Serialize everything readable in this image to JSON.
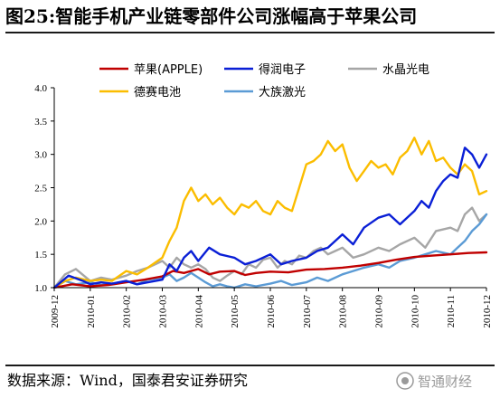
{
  "figure": {
    "title": "图25:智能手机产业链零部件公司涨幅高于苹果公司",
    "source": "数据来源：Wind，国泰君安证券研究",
    "watermark": "智通财经"
  },
  "chart_data": {
    "type": "line",
    "title": "",
    "xlabel": "",
    "ylabel": "",
    "ylim": [
      1.0,
      4.0
    ],
    "yticks": [
      "1.0",
      "1.5",
      "2.0",
      "2.5",
      "3.0",
      "3.5",
      "4.0"
    ],
    "xticks": [
      "2009-12",
      "2010-01",
      "2010-02",
      "2010-03",
      "2010-04",
      "2010-05",
      "2010-06",
      "2010-07",
      "2010-08",
      "2010-09",
      "2010-10",
      "2010-11",
      "2010-12"
    ],
    "xlim": [
      0,
      12
    ],
    "grid": false,
    "legend_position": "top",
    "series": [
      {
        "name": "苹果(APPLE)",
        "color": "#c00000",
        "x": [
          0,
          0.5,
          1,
          1.5,
          2,
          2.5,
          3,
          3.3,
          3.6,
          4,
          4.3,
          4.6,
          5,
          5.3,
          5.6,
          6,
          6.5,
          7,
          7.5,
          8,
          8.5,
          9,
          9.5,
          10,
          10.5,
          11,
          11.5,
          12
        ],
        "y": [
          1.0,
          1.05,
          1.02,
          1.04,
          1.08,
          1.12,
          1.17,
          1.25,
          1.22,
          1.28,
          1.2,
          1.24,
          1.25,
          1.19,
          1.22,
          1.24,
          1.23,
          1.27,
          1.28,
          1.3,
          1.33,
          1.37,
          1.42,
          1.46,
          1.48,
          1.5,
          1.52,
          1.53
        ]
      },
      {
        "name": "得润电子",
        "color": "#0a1fd6",
        "x": [
          0,
          0.4,
          0.8,
          1,
          1.3,
          1.6,
          2,
          2.3,
          2.6,
          3,
          3.2,
          3.4,
          3.6,
          3.8,
          4,
          4.3,
          4.6,
          5,
          5.3,
          5.6,
          6,
          6.3,
          6.6,
          7,
          7.3,
          7.6,
          8,
          8.3,
          8.6,
          9,
          9.3,
          9.6,
          10,
          10.2,
          10.4,
          10.6,
          10.8,
          11,
          11.2,
          11.4,
          11.6,
          11.8,
          12
        ],
        "y": [
          1.0,
          1.18,
          1.1,
          1.05,
          1.08,
          1.06,
          1.1,
          1.05,
          1.08,
          1.12,
          1.35,
          1.25,
          1.45,
          1.55,
          1.4,
          1.6,
          1.5,
          1.45,
          1.35,
          1.4,
          1.5,
          1.35,
          1.4,
          1.45,
          1.55,
          1.6,
          1.8,
          1.65,
          1.9,
          2.05,
          2.1,
          1.95,
          2.15,
          2.3,
          2.2,
          2.45,
          2.6,
          2.7,
          2.65,
          3.1,
          3.0,
          2.8,
          3.0
        ]
      },
      {
        "name": "水晶光电",
        "color": "#a6a6a6",
        "x": [
          0,
          0.3,
          0.6,
          1,
          1.3,
          1.6,
          2,
          2.3,
          2.6,
          3,
          3.2,
          3.4,
          3.6,
          3.8,
          4,
          4.2,
          4.4,
          4.6,
          4.8,
          5,
          5.2,
          5.4,
          5.6,
          5.8,
          6,
          6.2,
          6.4,
          6.6,
          6.8,
          7,
          7.2,
          7.4,
          7.6,
          7.8,
          8,
          8.3,
          8.6,
          9,
          9.3,
          9.6,
          10,
          10.3,
          10.6,
          11,
          11.2,
          11.4,
          11.6,
          11.8,
          12
        ],
        "y": [
          1.0,
          1.2,
          1.28,
          1.1,
          1.15,
          1.12,
          1.18,
          1.25,
          1.3,
          1.4,
          1.3,
          1.45,
          1.35,
          1.3,
          1.35,
          1.28,
          1.15,
          1.1,
          1.18,
          1.25,
          1.2,
          1.35,
          1.3,
          1.42,
          1.45,
          1.3,
          1.4,
          1.35,
          1.48,
          1.45,
          1.55,
          1.6,
          1.5,
          1.55,
          1.6,
          1.45,
          1.5,
          1.6,
          1.55,
          1.65,
          1.75,
          1.6,
          1.85,
          1.9,
          1.85,
          2.1,
          2.2,
          2.0,
          2.1
        ]
      },
      {
        "name": "德赛电池",
        "color": "#fbbd00",
        "x": [
          0,
          0.3,
          0.6,
          1,
          1.3,
          1.6,
          2,
          2.3,
          2.6,
          3,
          3.2,
          3.4,
          3.6,
          3.8,
          4,
          4.2,
          4.4,
          4.6,
          4.8,
          5,
          5.2,
          5.4,
          5.6,
          5.8,
          6,
          6.2,
          6.4,
          6.6,
          6.8,
          7,
          7.2,
          7.4,
          7.6,
          7.8,
          8,
          8.2,
          8.4,
          8.6,
          8.8,
          9,
          9.2,
          9.4,
          9.6,
          9.8,
          10,
          10.2,
          10.4,
          10.6,
          10.8,
          11,
          11.2,
          11.4,
          11.6,
          11.8,
          12
        ],
        "y": [
          1.0,
          1.1,
          1.15,
          1.1,
          1.12,
          1.1,
          1.25,
          1.2,
          1.3,
          1.45,
          1.7,
          1.9,
          2.3,
          2.5,
          2.3,
          2.4,
          2.25,
          2.35,
          2.2,
          2.1,
          2.25,
          2.2,
          2.3,
          2.15,
          2.1,
          2.3,
          2.2,
          2.15,
          2.5,
          2.85,
          2.9,
          3.0,
          3.2,
          3.05,
          3.15,
          2.8,
          2.6,
          2.75,
          2.9,
          2.8,
          2.85,
          2.7,
          2.95,
          3.05,
          3.25,
          3.0,
          3.2,
          2.9,
          2.95,
          2.8,
          2.7,
          2.85,
          2.75,
          2.4,
          2.45
        ]
      },
      {
        "name": "大族激光",
        "color": "#5b9bd5",
        "x": [
          0,
          0.3,
          0.6,
          1,
          1.3,
          1.6,
          2,
          2.3,
          2.6,
          3,
          3.2,
          3.4,
          3.6,
          3.8,
          4,
          4.2,
          4.4,
          4.6,
          4.8,
          5,
          5.3,
          5.6,
          6,
          6.3,
          6.6,
          7,
          7.3,
          7.6,
          8,
          8.3,
          8.6,
          9,
          9.3,
          9.6,
          10,
          10.3,
          10.6,
          11,
          11.2,
          11.4,
          11.6,
          11.8,
          12
        ],
        "y": [
          1.0,
          1.1,
          1.05,
          1.08,
          1.04,
          1.06,
          1.1,
          1.05,
          1.12,
          1.15,
          1.2,
          1.1,
          1.15,
          1.22,
          1.15,
          1.08,
          1.02,
          1.05,
          1.02,
          1.0,
          1.05,
          1.02,
          1.06,
          1.1,
          1.04,
          1.08,
          1.15,
          1.1,
          1.2,
          1.25,
          1.3,
          1.35,
          1.3,
          1.4,
          1.45,
          1.5,
          1.55,
          1.5,
          1.6,
          1.7,
          1.85,
          1.95,
          2.1
        ]
      }
    ]
  }
}
